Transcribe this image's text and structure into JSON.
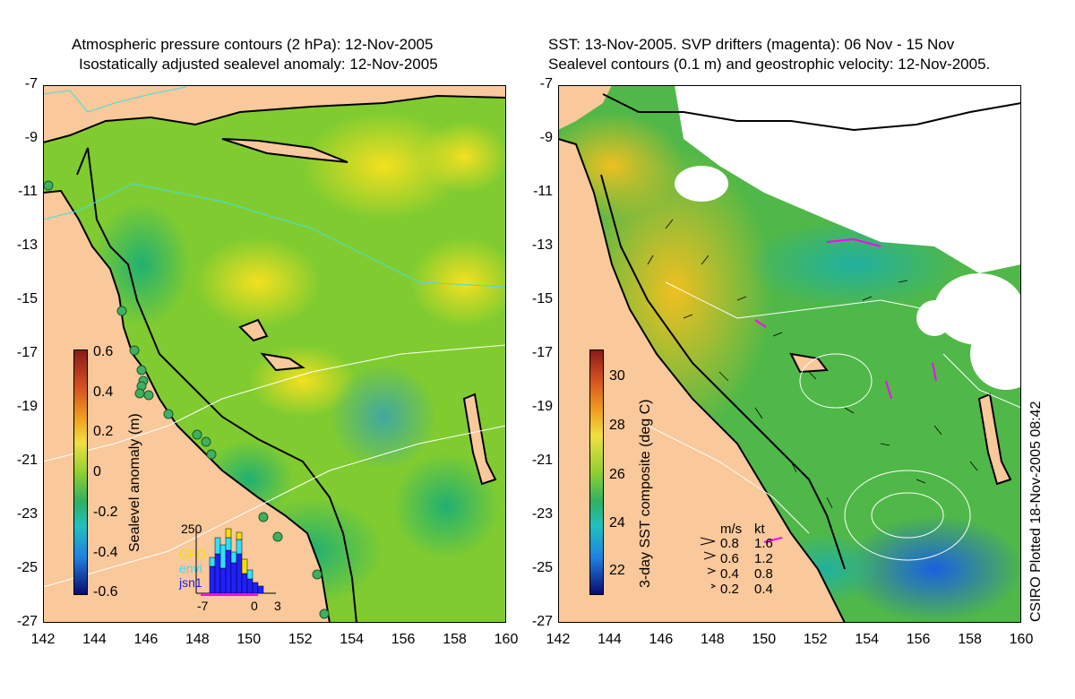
{
  "left_panel": {
    "title_line1": "Atmospheric pressure contours (2 hPa): 12-Nov-2005",
    "title_line2": "Isostatically adjusted sealevel anomaly: 12-Nov-2005",
    "colorbar_label": "Sealevel anomaly (m)",
    "colorbar_ticks": [
      "0.6",
      "0.4",
      "0.2",
      "0",
      "-0.2",
      "-0.4",
      "-0.6"
    ],
    "inset": {
      "ymax_label": "250",
      "x_ticks": [
        "-7",
        "0",
        "3"
      ],
      "legend": [
        {
          "name": "GFO",
          "color": "#f0e000"
        },
        {
          "name": "envi",
          "color": "#30e0ff"
        },
        {
          "name": "jsn1",
          "color": "#2020ff"
        }
      ]
    }
  },
  "right_panel": {
    "title_line1": "SST: 13-Nov-2005. SVP drifters (magenta): 06 Nov - 15 Nov",
    "title_line2": "Sealevel contours (0.1 m) and geostrophic velocity: 12-Nov-2005.",
    "colorbar_label": "3-day SST composite (deg C)",
    "colorbar_ticks": [
      "30",
      "28",
      "26",
      "24",
      "22"
    ],
    "vector_legend": {
      "header_ms": "m/s",
      "header_kt": "kt",
      "rows": [
        {
          "ms": "0.8",
          "kt": "1.6"
        },
        {
          "ms": "0.6",
          "kt": "1.2"
        },
        {
          "ms": "0.4",
          "kt": "0.8"
        },
        {
          "ms": "0.2",
          "kt": "0.4"
        }
      ]
    }
  },
  "axes": {
    "lat_ticks": [
      "-7",
      "-9",
      "-11",
      "-13",
      "-15",
      "-17",
      "-19",
      "-21",
      "-23",
      "-25",
      "-27"
    ],
    "lon_ticks": [
      "142",
      "144",
      "146",
      "148",
      "150",
      "152",
      "154",
      "156",
      "158",
      "160"
    ]
  },
  "footer": {
    "plotted": "CSIRO Plotted 18-Nov-2005 08:42"
  },
  "colors": {
    "land": "#f9c89b",
    "coast": "#000000",
    "drifter": "#ff00ff",
    "contour": "#ffffff"
  }
}
